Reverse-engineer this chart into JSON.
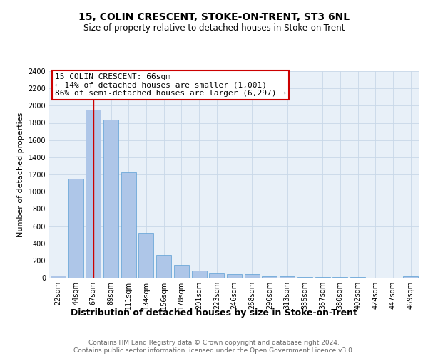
{
  "title": "15, COLIN CRESCENT, STOKE-ON-TRENT, ST3 6NL",
  "subtitle": "Size of property relative to detached houses in Stoke-on-Trent",
  "xlabel": "Distribution of detached houses by size in Stoke-on-Trent",
  "ylabel": "Number of detached properties",
  "categories": [
    "22sqm",
    "44sqm",
    "67sqm",
    "89sqm",
    "111sqm",
    "134sqm",
    "156sqm",
    "178sqm",
    "201sqm",
    "223sqm",
    "246sqm",
    "268sqm",
    "290sqm",
    "313sqm",
    "335sqm",
    "357sqm",
    "380sqm",
    "402sqm",
    "424sqm",
    "447sqm",
    "469sqm"
  ],
  "values": [
    25,
    1150,
    1950,
    1840,
    1225,
    520,
    265,
    150,
    85,
    50,
    45,
    40,
    20,
    15,
    10,
    5,
    8,
    5,
    0,
    0,
    20
  ],
  "bar_color": "#aec6e8",
  "bar_edge_color": "#5a9fd4",
  "vline_x": 2,
  "vline_color": "#cc0000",
  "annotation_title": "15 COLIN CRESCENT: 66sqm",
  "annotation_line1": "← 14% of detached houses are smaller (1,001)",
  "annotation_line2": "86% of semi-detached houses are larger (6,297) →",
  "annotation_box_color": "#cc0000",
  "ylim": [
    0,
    2400
  ],
  "yticks": [
    0,
    200,
    400,
    600,
    800,
    1000,
    1200,
    1400,
    1600,
    1800,
    2000,
    2200,
    2400
  ],
  "footer_line1": "Contains HM Land Registry data © Crown copyright and database right 2024.",
  "footer_line2": "Contains public sector information licensed under the Open Government Licence v3.0.",
  "background_color": "#ffffff",
  "plot_bg_color": "#e8f0f8",
  "grid_color": "#c8d8e8",
  "title_fontsize": 10,
  "subtitle_fontsize": 8.5,
  "xlabel_fontsize": 9,
  "ylabel_fontsize": 8,
  "tick_fontsize": 7,
  "annotation_fontsize": 8,
  "footer_fontsize": 6.5
}
